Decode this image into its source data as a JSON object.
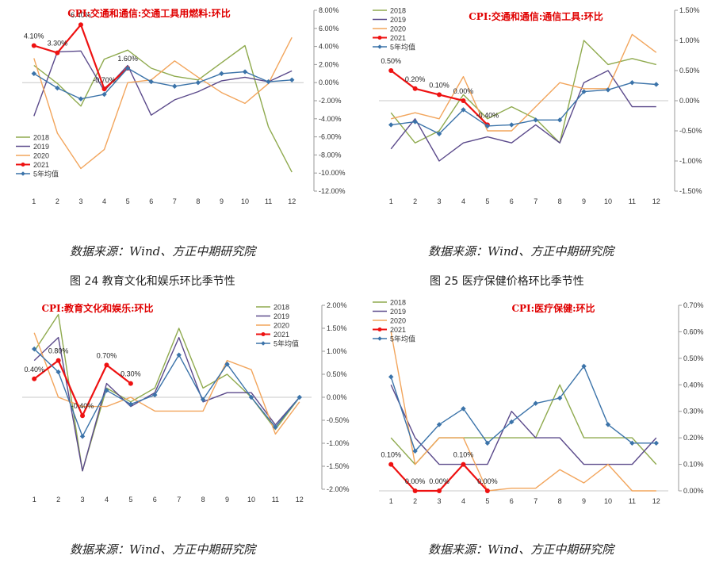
{
  "captions": {
    "fig24": "图  24   教育文化和娱乐环比季节性",
    "fig25": "图  25   医疗保健价格环比季节性"
  },
  "sources": {
    "tl": "数据来源：Wind、方正中期研究院",
    "tr": "数据来源：Wind、方正中期研究院",
    "bl": "数据来源：Wind、方正中期研究院",
    "br": "数据来源：Wind、方正中期研究院"
  },
  "chart_data": [
    {
      "type": "line",
      "title": "CPI:交通和通信:交通工具用燃料:环比",
      "x": [
        1,
        2,
        3,
        4,
        5,
        6,
        7,
        8,
        9,
        10,
        11,
        12
      ],
      "ylim": [
        -12,
        8
      ],
      "yticks": [
        "8.00%",
        "6.00%",
        "4.00%",
        "2.00%",
        "0.00%",
        "-2.00%",
        "-4.00%",
        "-6.00%",
        "-8.00%",
        "-10.00%",
        "-12.00%"
      ],
      "legend_position": "left",
      "series": [
        {
          "name": "2018",
          "color": "#8faa4e",
          "values": [
            1.9,
            -0.1,
            -2.6,
            2.6,
            3.6,
            1.6,
            0.7,
            0.3,
            2.2,
            4.1,
            -4.9,
            -9.9
          ]
        },
        {
          "name": "2019",
          "color": "#5b4a8b",
          "values": [
            -3.7,
            3.4,
            3.5,
            -0.9,
            1.9,
            -3.6,
            -1.9,
            -1.0,
            0.2,
            0.6,
            0.1,
            1.3
          ]
        },
        {
          "name": "2020",
          "color": "#f2a55c",
          "values": [
            2.7,
            -5.6,
            -9.5,
            -7.4,
            0.0,
            0.3,
            2.4,
            0.6,
            -1.1,
            -2.3,
            -0.1,
            5.0
          ]
        },
        {
          "name": "2021",
          "color": "#ee1111",
          "values": [
            4.1,
            3.3,
            6.4,
            -0.7,
            1.6,
            null,
            null,
            null,
            null,
            null,
            null,
            null
          ]
        },
        {
          "name": "5年均值",
          "color": "#3b73a9",
          "values": [
            1.0,
            -0.6,
            -1.8,
            -1.3,
            1.6,
            0.1,
            -0.4,
            0.0,
            1.0,
            1.2,
            0.1,
            0.3
          ]
        }
      ],
      "data_labels": [
        {
          "x": 1,
          "text": "4.10%"
        },
        {
          "x": 2,
          "text": "3.30%"
        },
        {
          "x": 3,
          "text": "6.40%"
        },
        {
          "x": 4,
          "text": "-0.70%"
        },
        {
          "x": 5,
          "text": "1.60%"
        }
      ]
    },
    {
      "type": "line",
      "title": "CPI:交通和通信:通信工具:环比",
      "x": [
        1,
        2,
        3,
        4,
        5,
        6,
        7,
        8,
        9,
        10,
        11,
        12
      ],
      "ylim": [
        -1.5,
        1.5
      ],
      "yticks": [
        "1.50%",
        "1.00%",
        "0.50%",
        "0.00%",
        "-0.50%",
        "-1.00%",
        "-1.50%"
      ],
      "legend_position": "top-left",
      "series": [
        {
          "name": "2018",
          "color": "#8faa4e",
          "values": [
            -0.2,
            -0.7,
            -0.5,
            0.1,
            -0.3,
            -0.1,
            -0.3,
            -0.7,
            1.0,
            0.6,
            0.7,
            0.6
          ]
        },
        {
          "name": "2019",
          "color": "#5b4a8b",
          "values": [
            -0.8,
            -0.3,
            -1.0,
            -0.7,
            -0.6,
            -0.7,
            -0.4,
            -0.7,
            0.3,
            0.5,
            -0.1,
            -0.1
          ]
        },
        {
          "name": "2020",
          "color": "#f2a55c",
          "values": [
            -0.3,
            -0.2,
            -0.3,
            0.4,
            -0.5,
            -0.5,
            -0.1,
            0.3,
            0.2,
            0.2,
            1.1,
            0.8
          ]
        },
        {
          "name": "2021",
          "color": "#ee1111",
          "values": [
            0.5,
            0.2,
            0.1,
            0.0,
            -0.4,
            null,
            null,
            null,
            null,
            null,
            null,
            null
          ]
        },
        {
          "name": "5年均值",
          "color": "#3b73a9",
          "values": [
            -0.4,
            -0.35,
            -0.55,
            -0.15,
            -0.42,
            -0.4,
            -0.32,
            -0.32,
            0.15,
            0.18,
            0.3,
            0.27
          ]
        }
      ],
      "data_labels": [
        {
          "x": 1,
          "text": "0.50%"
        },
        {
          "x": 2,
          "text": "0.20%"
        },
        {
          "x": 3,
          "text": "0.10%"
        },
        {
          "x": 4,
          "text": "0.00%"
        },
        {
          "x": 5,
          "text": "-0.40%"
        }
      ]
    },
    {
      "type": "line",
      "title": "CPI:教育文化和娱乐:环比",
      "x": [
        1,
        2,
        3,
        4,
        5,
        6,
        7,
        8,
        9,
        10,
        11,
        12
      ],
      "ylim": [
        -2.0,
        2.0
      ],
      "yticks": [
        "2.00%",
        "1.50%",
        "1.00%",
        "0.50%",
        "0.00%",
        "-0.50%",
        "-1.00%",
        "-1.50%",
        "-2.00%"
      ],
      "legend_position": "top-right",
      "series": [
        {
          "name": "2018",
          "color": "#8faa4e",
          "values": [
            1.0,
            1.8,
            -1.6,
            0.2,
            -0.1,
            0.2,
            1.5,
            0.2,
            0.5,
            0.0,
            -0.7,
            0.0
          ]
        },
        {
          "name": "2019",
          "color": "#5b4a8b",
          "values": [
            0.8,
            1.3,
            -1.6,
            0.3,
            -0.2,
            0.1,
            1.3,
            -0.1,
            0.1,
            0.1,
            -0.6,
            0.0
          ]
        },
        {
          "name": "2020",
          "color": "#f2a55c",
          "values": [
            1.4,
            0.0,
            -0.2,
            -0.2,
            0.0,
            -0.3,
            -0.3,
            -0.3,
            0.8,
            0.6,
            -0.8,
            -0.1
          ]
        },
        {
          "name": "2021",
          "color": "#ee1111",
          "values": [
            0.4,
            0.8,
            -0.4,
            0.7,
            0.3,
            null,
            null,
            null,
            null,
            null,
            null,
            null
          ]
        },
        {
          "name": "5年均值",
          "color": "#3b73a9",
          "values": [
            1.05,
            0.55,
            -0.85,
            0.15,
            -0.15,
            0.05,
            0.92,
            -0.05,
            0.72,
            0.0,
            -0.65,
            0.0
          ]
        }
      ],
      "data_labels": [
        {
          "x": 1,
          "text": "0.40%"
        },
        {
          "x": 2,
          "text": "0.80%"
        },
        {
          "x": 3,
          "text": "-0.40%"
        },
        {
          "x": 4,
          "text": "0.70%"
        },
        {
          "x": 5,
          "text": "0.30%"
        }
      ]
    },
    {
      "type": "line",
      "title": "CPI:医疗保健:环比",
      "x": [
        1,
        2,
        3,
        4,
        5,
        6,
        7,
        8,
        9,
        10,
        11,
        12
      ],
      "ylim": [
        0.0,
        0.7
      ],
      "yticks": [
        "0.70%",
        "0.60%",
        "0.50%",
        "0.40%",
        "0.30%",
        "0.20%",
        "0.10%",
        "0.00%"
      ],
      "legend_position": "top-left",
      "series": [
        {
          "name": "2018",
          "color": "#8faa4e",
          "values": [
            0.2,
            0.1,
            0.2,
            0.2,
            0.2,
            0.2,
            0.2,
            0.4,
            0.2,
            0.2,
            0.2,
            0.1
          ]
        },
        {
          "name": "2019",
          "color": "#5b4a8b",
          "values": [
            0.4,
            0.2,
            0.1,
            0.1,
            0.1,
            0.3,
            0.2,
            0.2,
            0.1,
            0.1,
            0.1,
            0.2
          ]
        },
        {
          "name": "2020",
          "color": "#f2a55c",
          "values": [
            0.6,
            0.1,
            0.2,
            0.2,
            0.0,
            0.01,
            0.01,
            0.08,
            0.03,
            0.1,
            0.0,
            0.0
          ]
        },
        {
          "name": "2021",
          "color": "#ee1111",
          "values": [
            0.1,
            0.0,
            0.0,
            0.1,
            0.0,
            null,
            null,
            null,
            null,
            null,
            null,
            null
          ]
        },
        {
          "name": "5年均值",
          "color": "#3b73a9",
          "values": [
            0.43,
            0.15,
            0.25,
            0.31,
            0.18,
            0.26,
            0.33,
            0.35,
            0.47,
            0.25,
            0.18,
            0.18
          ]
        }
      ],
      "data_labels": [
        {
          "x": 1,
          "text": "0.10%"
        },
        {
          "x": 2,
          "text": "0.00%"
        },
        {
          "x": 3,
          "text": "0.00%"
        },
        {
          "x": 4,
          "text": "0.10%"
        },
        {
          "x": 5,
          "text": "0.00%"
        }
      ]
    }
  ]
}
